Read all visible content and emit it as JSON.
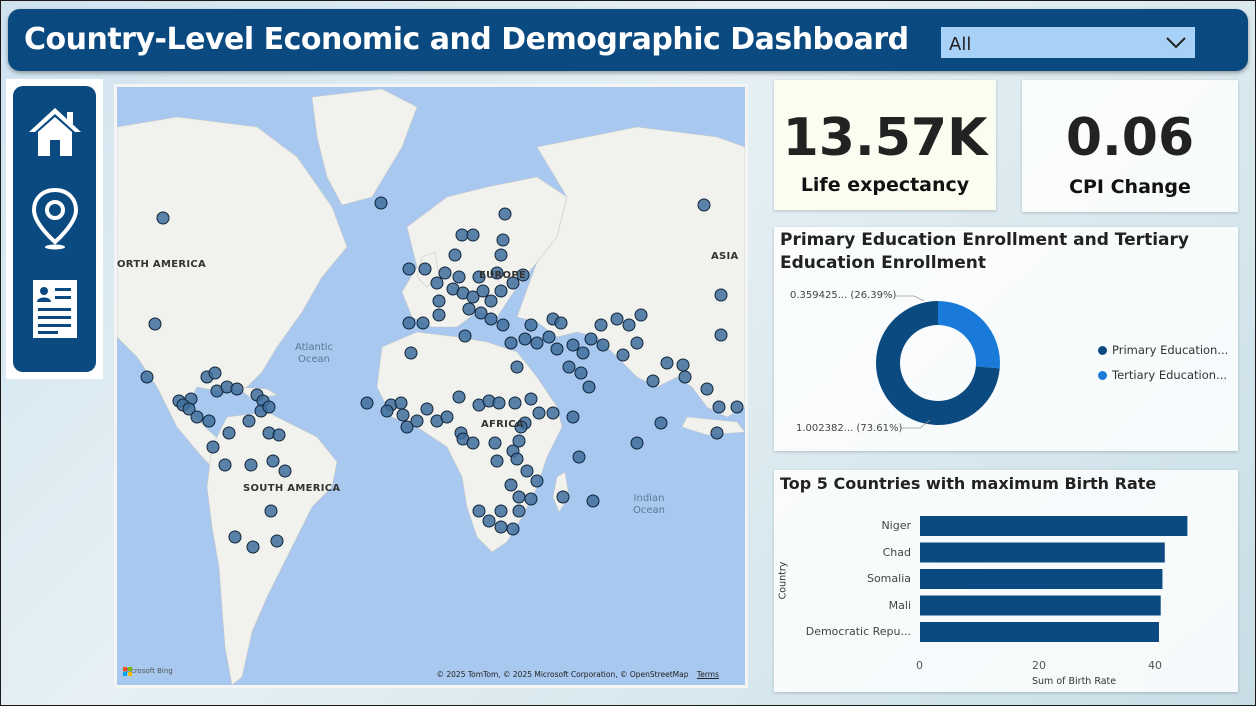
{
  "header": {
    "title": "Country-Level Economic and Demographic Dashboard",
    "filter_value": "All"
  },
  "nav": {
    "items": [
      {
        "name": "home",
        "icon": "home-icon"
      },
      {
        "name": "map",
        "icon": "location-pin-icon"
      },
      {
        "name": "details",
        "icon": "document-icon"
      }
    ]
  },
  "map": {
    "labels": {
      "north_america": "ORTH AMERICA",
      "south_america": "SOUTH AMERICA",
      "europe": "EUROPE",
      "africa": "AFRICA",
      "asia": "ASIA",
      "atlantic_1": "Atlantic",
      "atlantic_2": "Ocean",
      "indian_1": "Indian",
      "indian_2": "Ocean"
    },
    "attribution": "© 2025 TomTom, © 2025 Microsoft Corporation, © OpenStreetMap",
    "terms": "Terms",
    "bing": "Microsoft Bing"
  },
  "kpis": {
    "life_expectancy": {
      "value": "13.57K",
      "label": "Life expectancy"
    },
    "cpi_change": {
      "value": "0.06",
      "label": "CPI Change"
    }
  },
  "donut": {
    "title_line1": "Primary Education Enrollment and Tertiary",
    "title_line2": "Education Enrollment",
    "top_label": "0.359425... (26.39%)",
    "bottom_label": "1.002382... (73.61%)",
    "colors": {
      "primary": "#0b4a80",
      "tertiary": "#1a7ad9"
    }
  },
  "chart_data": [
    {
      "type": "pie",
      "title": "Primary Education Enrollment and Tertiary Education Enrollment",
      "slices": [
        {
          "name": "Primary Education...",
          "value": 1.002382,
          "percent": 73.61
        },
        {
          "name": "Tertiary Education...",
          "value": 0.359425,
          "percent": 26.39
        }
      ],
      "legend": "right"
    },
    {
      "type": "bar",
      "orientation": "horizontal",
      "title": "Top 5 Countries with maximum Birth Rate",
      "categories": [
        "Niger",
        "Chad",
        "Somalia",
        "Mali",
        "Democratic Repu..."
      ],
      "values": [
        46.1,
        42.2,
        41.8,
        41.5,
        41.2
      ],
      "xlabel": "Sum of Birth Rate",
      "ylabel": "Country",
      "xlim": [
        0,
        50
      ],
      "xticks": [
        "0",
        "20",
        "40"
      ],
      "bar_color": "#0b4a80"
    }
  ]
}
